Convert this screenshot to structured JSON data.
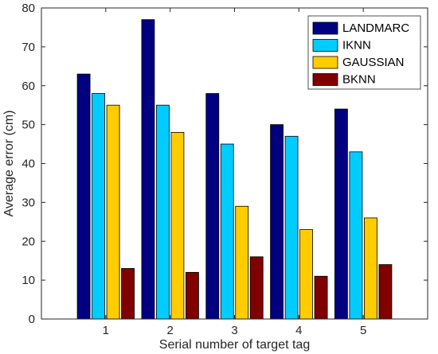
{
  "chart_data": {
    "type": "bar",
    "title": "",
    "xlabel": "Serial number of target tag",
    "ylabel": "Average error (cm)",
    "categories": [
      "1",
      "2",
      "3",
      "4",
      "5"
    ],
    "ylim": [
      0,
      80
    ],
    "yticks": [
      "0",
      "10",
      "20",
      "30",
      "40",
      "50",
      "60",
      "70",
      "80"
    ],
    "grid": false,
    "legend_position": "top-right",
    "series": [
      {
        "name": "LANDMARC",
        "color": "#000080",
        "values": [
          63,
          77,
          58,
          50,
          54
        ]
      },
      {
        "name": "IKNN",
        "color": "#00CCFF",
        "values": [
          58,
          55,
          45,
          47,
          43
        ]
      },
      {
        "name": "GAUSSIAN",
        "color": "#FFCC00",
        "values": [
          55,
          48,
          29,
          23,
          26
        ]
      },
      {
        "name": "BKNN",
        "color": "#800000",
        "values": [
          13,
          12,
          16,
          11,
          14
        ]
      }
    ]
  }
}
